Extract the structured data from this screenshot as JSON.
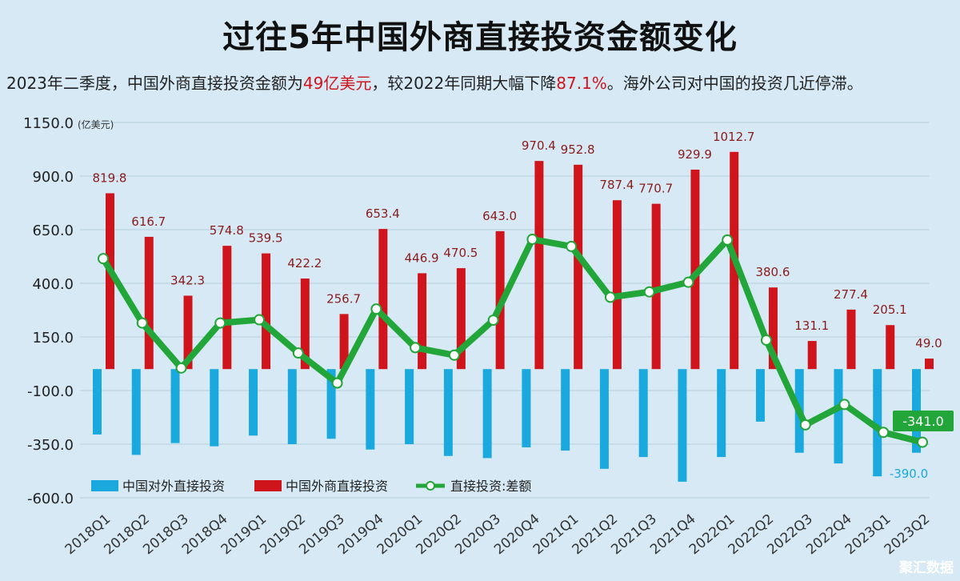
{
  "title": "过往5年中国外商直接投资金额变化",
  "subtitle": {
    "p1": "2023年二季度，中国外商直接投资金额为",
    "v1": "49亿美元",
    "p2": "，较2022年同期大幅下降",
    "v2": "87.1%",
    "p3": "。海外公司对中国的投资几近停滞。"
  },
  "watermark": "聚汇数据",
  "colors": {
    "outflow": "#1aa9de",
    "inflow": "#d0141b",
    "diff": "#22a539",
    "label_inflow": "#8b1b1b"
  },
  "chart_data": {
    "type": "bar",
    "unit": "(亿美元)",
    "ylim": [
      -600,
      1150
    ],
    "yticks": [
      "1150.0",
      "900.0",
      "650.0",
      "400.0",
      "150.0",
      "-100.0",
      "-350.0",
      "-600.0"
    ],
    "ytick_values": [
      1150,
      900,
      650,
      400,
      150,
      -100,
      -350,
      -600
    ],
    "grid": true,
    "legend_position": "bottom-left",
    "categories": [
      "2018Q1",
      "2018Q2",
      "2018Q3",
      "2018Q4",
      "2019Q1",
      "2019Q2",
      "2019Q3",
      "2019Q4",
      "2020Q1",
      "2020Q2",
      "2020Q3",
      "2020Q4",
      "2021Q1",
      "2021Q2",
      "2021Q3",
      "2021Q4",
      "2022Q1",
      "2022Q2",
      "2022Q3",
      "2022Q4",
      "2023Q1",
      "2023Q2"
    ],
    "series": [
      {
        "name": "中国对外直接投资",
        "type": "bar",
        "values": [
          -305,
          -400,
          -345,
          -360,
          -310,
          -350,
          -325,
          -375,
          -350,
          -405,
          -415,
          -365,
          -380,
          -465,
          -410,
          -525,
          -410,
          -245,
          -390,
          -440,
          -500,
          -390
        ]
      },
      {
        "name": "中国外商直接投资",
        "type": "bar",
        "values": [
          819.8,
          616.7,
          342.3,
          574.8,
          539.5,
          422.2,
          256.7,
          653.4,
          446.9,
          470.5,
          643.0,
          970.4,
          952.8,
          787.4,
          770.7,
          929.9,
          1012.7,
          380.6,
          131.1,
          277.4,
          205.1,
          49.0
        ]
      },
      {
        "name": "直接投资:差额",
        "type": "line",
        "values": [
          515,
          215,
          5,
          215,
          230,
          75,
          -65,
          280,
          100,
          65,
          228,
          605,
          572,
          335,
          360,
          405,
          602,
          135,
          -260,
          -165,
          -295,
          -341.0
        ]
      }
    ],
    "inflow_labels": [
      "819.8",
      "616.7",
      "342.3",
      "574.8",
      "539.5",
      "422.2",
      "256.7",
      "653.4",
      "446.9",
      "470.5",
      "643.0",
      "970.4",
      "952.8",
      "787.4",
      "770.7",
      "929.9",
      "1012.7",
      "380.6",
      "131.1",
      "277.4",
      "205.1",
      "49.0"
    ],
    "annotations": {
      "last_diff_label": "-341.0",
      "last_outflow_label": "-390.0"
    }
  }
}
